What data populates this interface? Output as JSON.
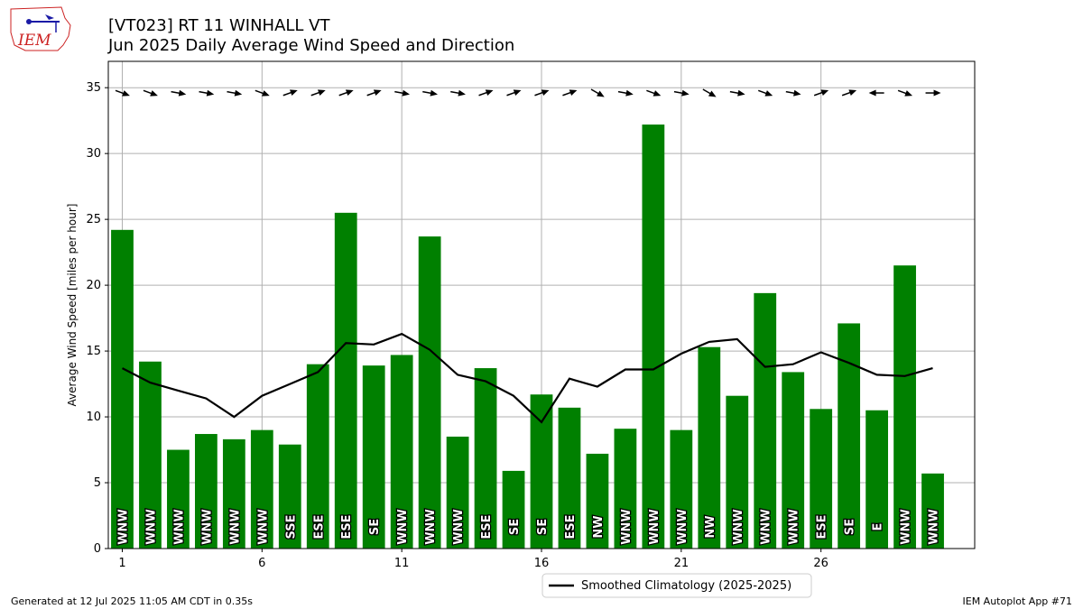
{
  "header": {
    "title_line1": "[VT023] RT 11 WINHALL  VT",
    "title_line2": "Jun 2025 Daily Average Wind Speed and Direction"
  },
  "logo": {
    "text": "IEM"
  },
  "footer": {
    "left": "Generated at 12 Jul 2025 11:05 AM CDT in 0.35s",
    "right": "IEM Autoplot App #71"
  },
  "colors": {
    "bar": "#008000",
    "line": "#000000",
    "grid": "#b0b0b0",
    "logo_text": "#cc2222",
    "logo_icon": "#1a1aa6"
  },
  "chart_data": {
    "type": "bar",
    "ylabel": "Average Wind Speed [miles per hour]",
    "xlabel": "",
    "xlim": [
      0.5,
      31.5
    ],
    "ylim": [
      0,
      37
    ],
    "x_ticks": [
      1,
      6,
      11,
      16,
      21,
      26
    ],
    "y_ticks": [
      0,
      5,
      10,
      15,
      20,
      25,
      30,
      35
    ],
    "grid": true,
    "legend": {
      "position": "bottom-center",
      "entries": [
        "Smoothed Climatology (2025-2025)"
      ]
    },
    "days": [
      1,
      2,
      3,
      4,
      5,
      6,
      7,
      8,
      9,
      10,
      11,
      12,
      13,
      14,
      15,
      16,
      17,
      18,
      19,
      20,
      21,
      22,
      23,
      24,
      25,
      26,
      27,
      28,
      29,
      30
    ],
    "values": [
      24.2,
      14.2,
      7.5,
      8.7,
      8.3,
      9.0,
      7.9,
      14.0,
      25.5,
      13.9,
      14.7,
      23.7,
      8.5,
      13.7,
      5.9,
      11.7,
      10.7,
      7.2,
      9.1,
      32.2,
      9.0,
      15.3,
      11.6,
      19.4,
      13.4,
      10.6,
      17.1,
      10.5,
      21.5,
      5.7
    ],
    "directions": [
      "WNW",
      "WNW",
      "WNW",
      "WNW",
      "WNW",
      "WNW",
      "SSE",
      "ESE",
      "ESE",
      "SE",
      "WNW",
      "WNW",
      "WNW",
      "ESE",
      "SE",
      "SE",
      "ESE",
      "NW",
      "WNW",
      "WNW",
      "WNW",
      "NW",
      "WNW",
      "WNW",
      "WNW",
      "ESE",
      "SE",
      "E",
      "WNW",
      "WNW"
    ],
    "arrow_angles_deg": [
      20,
      20,
      10,
      10,
      10,
      20,
      -20,
      -20,
      -20,
      -20,
      10,
      10,
      10,
      -20,
      -20,
      -20,
      -20,
      30,
      10,
      20,
      10,
      30,
      10,
      20,
      10,
      -20,
      -20,
      180,
      20,
      0
    ],
    "climatology": {
      "name": "Smoothed Climatology (2025-2025)",
      "values": [
        13.7,
        12.6,
        12.0,
        11.4,
        10.0,
        11.6,
        12.5,
        13.4,
        15.6,
        15.5,
        16.3,
        15.1,
        13.2,
        12.7,
        11.6,
        9.6,
        12.9,
        12.3,
        13.6,
        13.6,
        14.8,
        15.7,
        15.9,
        13.8,
        14.0,
        14.9,
        14.1,
        13.2,
        13.1,
        13.7
      ]
    }
  }
}
